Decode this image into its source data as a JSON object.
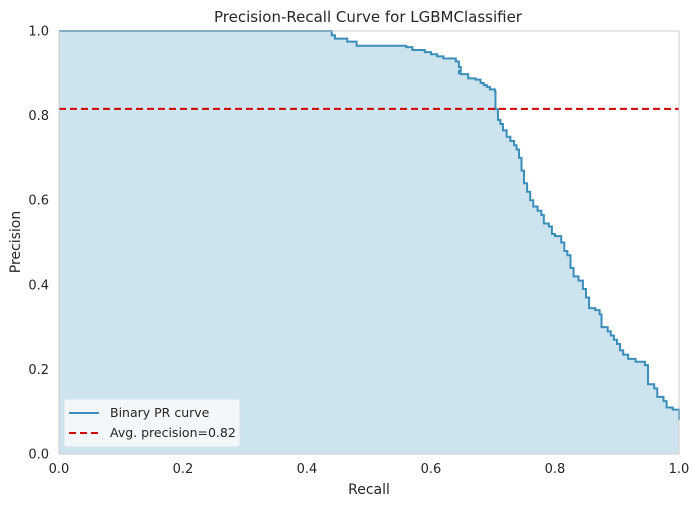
{
  "chart_data": {
    "type": "line",
    "title": "Precision-Recall Curve for LGBMClassifier",
    "xlabel": "Recall",
    "ylabel": "Precision",
    "xlim": [
      0,
      1
    ],
    "ylim": [
      0,
      1
    ],
    "xticks": [
      "0.0",
      "0.2",
      "0.4",
      "0.6",
      "0.8",
      "1.0"
    ],
    "yticks": [
      "0.0",
      "0.2",
      "0.4",
      "0.6",
      "0.8",
      "1.0"
    ],
    "grid": false,
    "legend_position": "lower-left",
    "series": [
      {
        "name": "Binary PR curve",
        "color": "#3b8eba",
        "fill": "#cde3ee",
        "step": true,
        "points": [
          [
            0.0,
            1.0
          ],
          [
            0.438,
            1.0
          ],
          [
            0.44,
            0.99
          ],
          [
            0.445,
            0.982
          ],
          [
            0.465,
            0.975
          ],
          [
            0.48,
            0.965
          ],
          [
            0.56,
            0.962
          ],
          [
            0.57,
            0.955
          ],
          [
            0.59,
            0.95
          ],
          [
            0.6,
            0.945
          ],
          [
            0.61,
            0.94
          ],
          [
            0.62,
            0.935
          ],
          [
            0.64,
            0.928
          ],
          [
            0.645,
            0.915
          ],
          [
            0.648,
            0.905
          ],
          [
            0.645,
            0.9
          ],
          [
            0.648,
            0.898
          ],
          [
            0.66,
            0.888
          ],
          [
            0.672,
            0.885
          ],
          [
            0.68,
            0.877
          ],
          [
            0.685,
            0.872
          ],
          [
            0.69,
            0.868
          ],
          [
            0.695,
            0.862
          ],
          [
            0.703,
            0.858
          ],
          [
            0.704,
            0.815
          ],
          [
            0.708,
            0.79
          ],
          [
            0.712,
            0.78
          ],
          [
            0.716,
            0.765
          ],
          [
            0.722,
            0.75
          ],
          [
            0.728,
            0.74
          ],
          [
            0.734,
            0.73
          ],
          [
            0.738,
            0.72
          ],
          [
            0.742,
            0.7
          ],
          [
            0.746,
            0.67
          ],
          [
            0.75,
            0.64
          ],
          [
            0.755,
            0.62
          ],
          [
            0.76,
            0.6
          ],
          [
            0.765,
            0.585
          ],
          [
            0.772,
            0.575
          ],
          [
            0.778,
            0.565
          ],
          [
            0.782,
            0.545
          ],
          [
            0.79,
            0.538
          ],
          [
            0.795,
            0.52
          ],
          [
            0.8,
            0.515
          ],
          [
            0.81,
            0.5
          ],
          [
            0.815,
            0.48
          ],
          [
            0.82,
            0.47
          ],
          [
            0.825,
            0.44
          ],
          [
            0.83,
            0.42
          ],
          [
            0.838,
            0.41
          ],
          [
            0.845,
            0.39
          ],
          [
            0.85,
            0.37
          ],
          [
            0.855,
            0.345
          ],
          [
            0.865,
            0.34
          ],
          [
            0.872,
            0.33
          ],
          [
            0.875,
            0.3
          ],
          [
            0.885,
            0.29
          ],
          [
            0.89,
            0.28
          ],
          [
            0.895,
            0.27
          ],
          [
            0.9,
            0.26
          ],
          [
            0.905,
            0.245
          ],
          [
            0.91,
            0.235
          ],
          [
            0.918,
            0.225
          ],
          [
            0.93,
            0.218
          ],
          [
            0.945,
            0.21
          ],
          [
            0.95,
            0.165
          ],
          [
            0.96,
            0.155
          ],
          [
            0.965,
            0.135
          ],
          [
            0.975,
            0.125
          ],
          [
            0.98,
            0.11
          ],
          [
            0.99,
            0.105
          ],
          [
            0.998,
            0.105
          ],
          [
            1.0,
            0.08
          ]
        ]
      },
      {
        "name": "Avg. precision=0.82",
        "color": "#d00000",
        "dashed": true,
        "y": 0.816
      }
    ]
  }
}
